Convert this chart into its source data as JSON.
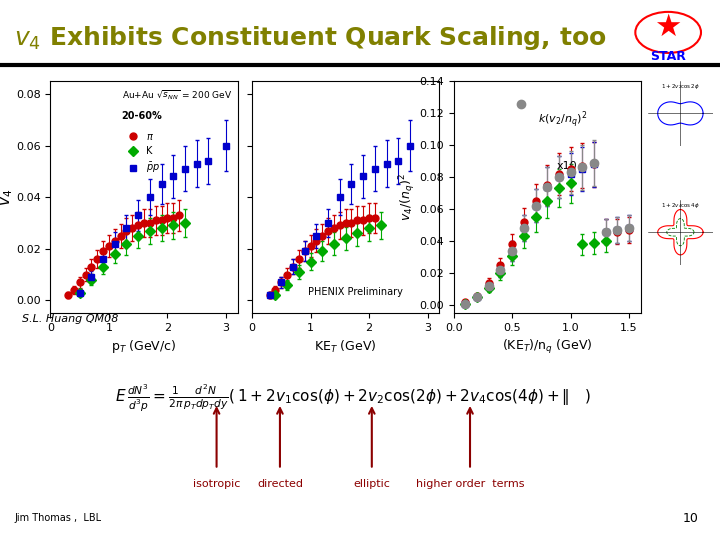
{
  "title_text": "v",
  "title_sub": "4",
  "title_rest": " Exhibits Constituent Quark Scaling, too",
  "title_color": "#808000",
  "bg_color": "#ffffff",
  "formula_text": "E\\,\\frac{dN^3}{d^3p} = \\frac{1}{2\\pi}\\frac{d^2N}{p_T dp_T dy}\\left(\\,1 + 2v_1\\cos(\\phi) + 2v_2\\cos(2\\phi) + 2v_4\\cos(4\\phi) + \\|\\quad\\right)",
  "labels_isotropic": "isotropic",
  "labels_directed": "directed",
  "labels_elliptic": "elliptic",
  "labels_higher": "higher order  terms",
  "author": "S.L. Huang QM08",
  "attribution": "Jim Thomas ,  LBL",
  "slide_number": "10",
  "panel1_xlabel": "p$_T$ (GeV/c)",
  "panel2_xlabel": "KE$_T$ (GeV)",
  "panel3_xlabel": "(KE$_T$)/n$_q$ (GeV)",
  "ylabel": "v$_4$",
  "panel3_ylabel": "v$_4$/(n$_q$)$^2$",
  "panel1_xlim": [
    0,
    3.2
  ],
  "panel2_xlim": [
    0,
    3.2
  ],
  "panel3_xlim": [
    0.0,
    1.6
  ],
  "ylim1": [
    -0.005,
    0.085
  ],
  "ylim3": [
    -0.005,
    0.14
  ],
  "annotation_auau": "Au+Au $\\sqrt{s_{NN}}$ = 200 GeV",
  "annotation_cent": "20-60%",
  "annotation_phenix": "PHENIX Preliminary",
  "annotation_x10": "x10",
  "pi_color": "#cc0000",
  "K_color": "#00aa00",
  "pp_color": "#0000cc",
  "gray_color": "#888888",
  "pi_data_x": [
    0.3,
    0.4,
    0.5,
    0.6,
    0.7,
    0.8,
    0.9,
    1.0,
    1.1,
    1.2,
    1.3,
    1.4,
    1.5,
    1.6,
    1.7,
    1.8,
    1.9,
    2.0,
    2.1,
    2.2
  ],
  "pi_data_y": [
    0.002,
    0.004,
    0.007,
    0.01,
    0.013,
    0.016,
    0.019,
    0.021,
    0.023,
    0.025,
    0.027,
    0.028,
    0.029,
    0.03,
    0.03,
    0.031,
    0.031,
    0.032,
    0.032,
    0.033
  ],
  "K_data_x": [
    0.5,
    0.7,
    0.9,
    1.1,
    1.3,
    1.5,
    1.7,
    1.9,
    2.1,
    2.3
  ],
  "K_data_y": [
    0.003,
    0.008,
    0.013,
    0.018,
    0.022,
    0.025,
    0.027,
    0.028,
    0.029,
    0.03
  ],
  "pp_data_x": [
    0.5,
    0.7,
    0.9,
    1.1,
    1.3,
    1.5,
    1.7,
    1.9,
    2.1,
    2.3,
    2.5,
    2.7,
    3.0
  ],
  "pp_data_y": [
    0.003,
    0.009,
    0.016,
    0.022,
    0.028,
    0.033,
    0.04,
    0.045,
    0.048,
    0.051,
    0.053,
    0.054,
    0.06
  ],
  "pi2_data_x": [
    0.3,
    0.4,
    0.5,
    0.6,
    0.7,
    0.8,
    0.9,
    1.0,
    1.1,
    1.2,
    1.3,
    1.4,
    1.5,
    1.6,
    1.7,
    1.8,
    1.9,
    2.0,
    2.1
  ],
  "pi2_data_y": [
    0.002,
    0.004,
    0.007,
    0.01,
    0.013,
    0.016,
    0.019,
    0.021,
    0.023,
    0.025,
    0.027,
    0.028,
    0.029,
    0.03,
    0.03,
    0.031,
    0.031,
    0.032,
    0.032
  ],
  "K2_data_x": [
    0.4,
    0.6,
    0.8,
    1.0,
    1.2,
    1.4,
    1.6,
    1.8,
    2.0,
    2.2
  ],
  "K2_data_y": [
    0.002,
    0.006,
    0.011,
    0.015,
    0.019,
    0.022,
    0.024,
    0.026,
    0.028,
    0.029
  ],
  "pp2_data_x": [
    0.3,
    0.5,
    0.7,
    0.9,
    1.1,
    1.3,
    1.5,
    1.7,
    1.9,
    2.1,
    2.3,
    2.5,
    2.7
  ],
  "pp2_data_y": [
    0.002,
    0.007,
    0.013,
    0.019,
    0.025,
    0.03,
    0.04,
    0.045,
    0.048,
    0.051,
    0.053,
    0.054,
    0.06
  ],
  "pi3_data_x": [
    0.1,
    0.2,
    0.3,
    0.4,
    0.5,
    0.6,
    0.7,
    0.8,
    0.9,
    1.0,
    1.1,
    1.2,
    1.3,
    1.4,
    1.5
  ],
  "pi3_data_y": [
    0.002,
    0.006,
    0.014,
    0.025,
    0.038,
    0.052,
    0.065,
    0.075,
    0.082,
    0.085,
    0.087,
    0.088,
    0.046,
    0.046,
    0.047
  ],
  "K3_data_x": [
    0.1,
    0.2,
    0.3,
    0.4,
    0.5,
    0.6,
    0.7,
    0.8,
    0.9,
    1.0,
    1.1,
    1.2,
    1.3
  ],
  "K3_data_y": [
    0.001,
    0.005,
    0.011,
    0.02,
    0.031,
    0.043,
    0.055,
    0.065,
    0.073,
    0.076,
    0.038,
    0.039,
    0.04
  ],
  "pp3_data_x": [
    0.1,
    0.2,
    0.3,
    0.4,
    0.5,
    0.6,
    0.7,
    0.8,
    0.9,
    1.0,
    1.1,
    1.2,
    1.3,
    1.4,
    1.5
  ],
  "pp3_data_y": [
    0.001,
    0.005,
    0.012,
    0.022,
    0.034,
    0.048,
    0.062,
    0.074,
    0.08,
    0.082,
    0.085,
    0.088,
    0.046,
    0.047,
    0.048
  ],
  "gray3_data_x": [
    0.1,
    0.2,
    0.3,
    0.4,
    0.5,
    0.6,
    0.7,
    0.8,
    0.9,
    1.0,
    1.1,
    1.2,
    1.3,
    1.4,
    1.5
  ],
  "gray3_data_y": [
    0.001,
    0.005,
    0.012,
    0.022,
    0.034,
    0.048,
    0.062,
    0.074,
    0.08,
    0.083,
    0.086,
    0.089,
    0.046,
    0.047,
    0.048
  ]
}
